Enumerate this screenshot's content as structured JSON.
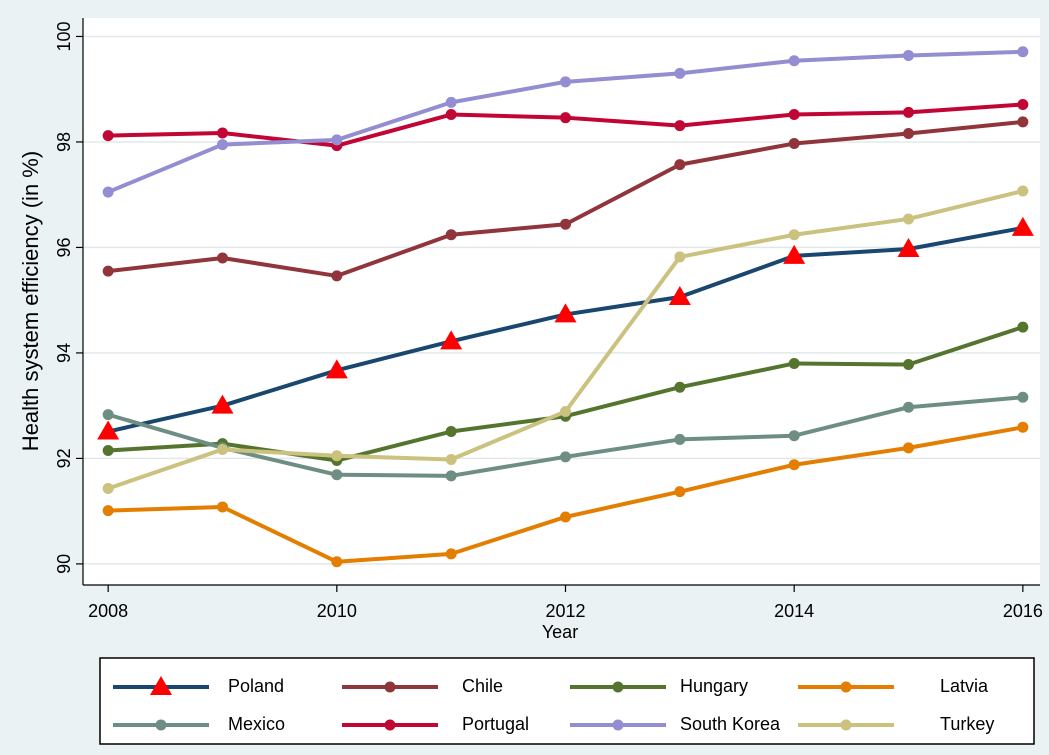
{
  "chart_data": {
    "type": "line",
    "x_label": "Year",
    "y_label": "Health system efficiency (in %)",
    "x": [
      2008,
      2009,
      2010,
      2011,
      2012,
      2013,
      2014,
      2015,
      2016
    ],
    "xlim": [
      2007.78,
      2016.15
    ],
    "xticks": [
      2008,
      2010,
      2012,
      2014,
      2016
    ],
    "ylim": [
      89.6,
      100.35
    ],
    "yticks": [
      90,
      92,
      94,
      96,
      98,
      100
    ],
    "grid": true,
    "legend": "bottom",
    "series": [
      {
        "name": "Poland",
        "color": "#1a476f",
        "marker": "triangle",
        "marker_color": "#ff0000",
        "values": [
          92.51,
          93.0,
          93.67,
          94.22,
          94.73,
          95.06,
          95.84,
          95.97,
          96.37
        ]
      },
      {
        "name": "Chile",
        "color": "#90353b",
        "marker": "circle",
        "marker_color": "#90353b",
        "values": [
          95.55,
          95.8,
          95.46,
          96.24,
          96.44,
          97.57,
          97.97,
          98.16,
          98.38
        ]
      },
      {
        "name": "Hungary",
        "color": "#55752f",
        "marker": "circle",
        "marker_color": "#55752f",
        "values": [
          92.15,
          92.28,
          91.96,
          92.51,
          92.8,
          93.35,
          93.8,
          93.78,
          94.49
        ]
      },
      {
        "name": "Latvia",
        "color": "#e37e00",
        "marker": "circle",
        "marker_color": "#e37e00",
        "values": [
          91.01,
          91.08,
          90.04,
          90.19,
          90.89,
          91.37,
          91.88,
          92.2,
          92.59
        ]
      },
      {
        "name": "Mexico",
        "color": "#6e8e84",
        "marker": "circle",
        "marker_color": "#6e8e84",
        "values": [
          92.83,
          92.2,
          91.69,
          91.67,
          92.03,
          92.36,
          92.43,
          92.97,
          93.16
        ]
      },
      {
        "name": "Portugal",
        "color": "#c10534",
        "marker": "circle",
        "marker_color": "#c10534",
        "values": [
          98.12,
          98.17,
          97.93,
          98.52,
          98.46,
          98.31,
          98.52,
          98.56,
          98.71
        ]
      },
      {
        "name": "South Korea",
        "color": "#938dd2",
        "marker": "circle",
        "marker_color": "#938dd2",
        "values": [
          97.05,
          97.95,
          98.04,
          98.75,
          99.14,
          99.3,
          99.54,
          99.64,
          99.71
        ]
      },
      {
        "name": "Turkey",
        "color": "#cac27e",
        "marker": "circle",
        "marker_color": "#cac27e",
        "values": [
          91.43,
          92.17,
          92.05,
          91.98,
          92.89,
          95.82,
          96.24,
          96.54,
          97.07
        ]
      }
    ]
  }
}
